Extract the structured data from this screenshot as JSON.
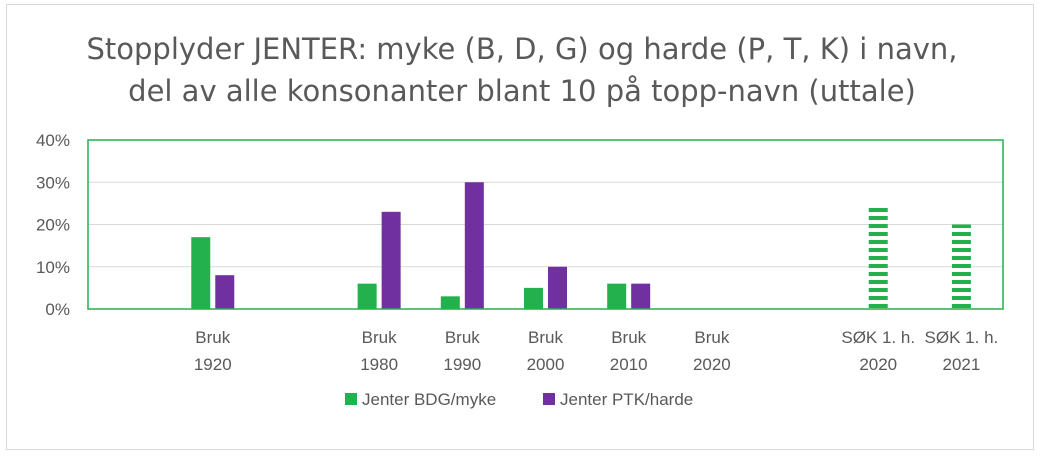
{
  "chart_data": {
    "type": "bar",
    "title_line1": "Stopplyder JENTER: myke (B, D, G) og harde (P, T, K) i navn,",
    "title_line2": "del av alle konsonanter blant 10 på topp-navn (uttale)",
    "categories": [
      [
        "",
        ""
      ],
      [
        "Bruk",
        "1920"
      ],
      [
        "",
        ""
      ],
      [
        "Bruk",
        "1980"
      ],
      [
        "Bruk",
        "1990"
      ],
      [
        "Bruk",
        "2000"
      ],
      [
        "Bruk",
        "2010"
      ],
      [
        "Bruk",
        "2020"
      ],
      [
        "",
        ""
      ],
      [
        "SØK 1. h.",
        "2020"
      ],
      [
        "SØK 1. h.",
        "2021"
      ]
    ],
    "series": [
      {
        "name": "Jenter BDG/myke",
        "color": "#22b14c",
        "values": [
          null,
          17,
          null,
          6,
          3,
          5,
          6,
          null,
          null,
          null,
          null
        ]
      },
      {
        "name": "Jenter PTK/harde",
        "color": "#7030a0",
        "values": [
          null,
          8,
          null,
          23,
          30,
          10,
          6,
          null,
          null,
          null,
          null
        ]
      },
      {
        "name": "",
        "color": "#22b14c",
        "pattern": "dashed-horizontal",
        "values": [
          null,
          null,
          null,
          null,
          null,
          null,
          null,
          null,
          null,
          24,
          20
        ]
      }
    ],
    "ylim": [
      0,
      40
    ],
    "yticks": [
      "0%",
      "10%",
      "20%",
      "30%",
      "40%"
    ],
    "ytick_values": [
      0,
      10,
      20,
      30,
      40
    ],
    "grid": true,
    "plot_border_color": "#22b14c",
    "legend_position": "bottom"
  }
}
